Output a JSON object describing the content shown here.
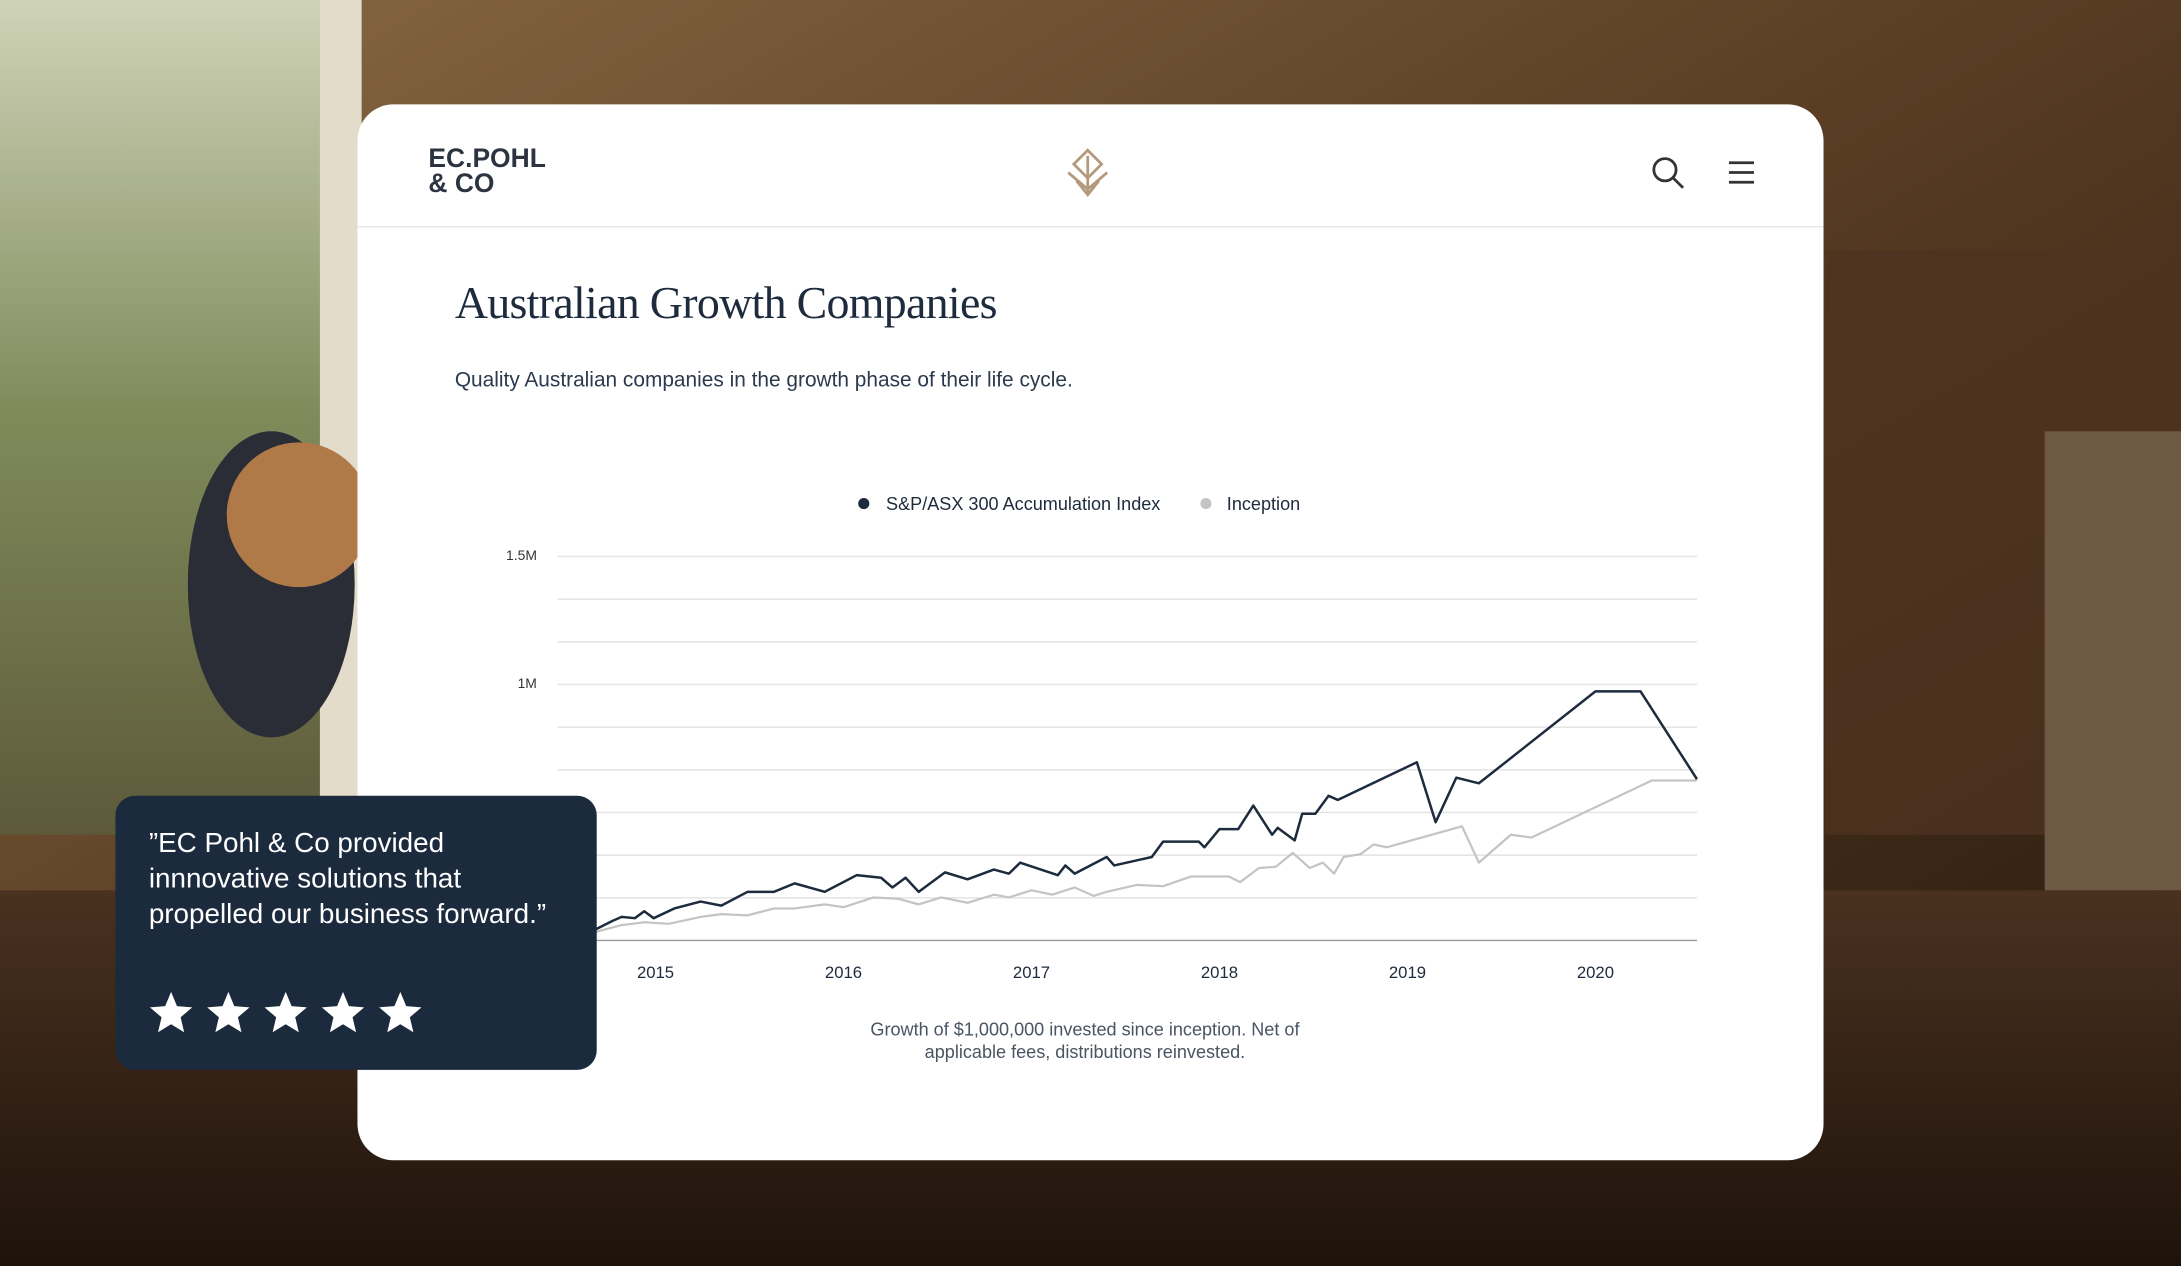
{
  "header": {
    "logo": [
      "EC.POHL",
      "& CO"
    ]
  },
  "content": {
    "title": "Australian Growth Companies",
    "subtitle": "Quality Australian companies in the growth phase of their life cycle."
  },
  "chart_data": {
    "type": "line",
    "legend": "top",
    "grid": true,
    "xlim": [
      2014.48,
      2020.54
    ],
    "xticks": [
      2015,
      2016,
      2017,
      2018,
      2019,
      2020
    ],
    "ylim": [
      0,
      1500000
    ],
    "yticks": [
      {
        "value": 166667,
        "label": null
      },
      {
        "value": 333333,
        "label": null
      },
      {
        "value": 500000,
        "label": null
      },
      {
        "value": 666667,
        "label": null
      },
      {
        "value": 833333,
        "label": null
      },
      {
        "value": 1000000,
        "label": "1M"
      },
      {
        "value": 1166667,
        "label": null
      },
      {
        "value": 1333333,
        "label": null
      },
      {
        "value": 1500000,
        "label": "1.5M"
      }
    ],
    "series": [
      {
        "name": "S&P/ASX 300 Accumulation Index",
        "color": "#1d2b3d",
        "x": [
          2014.68,
          2014.77,
          2014.82,
          2014.89,
          2014.94,
          2014.99,
          2015.1,
          2015.24,
          2015.35,
          2015.49,
          2015.63,
          2015.74,
          2015.9,
          2016.07,
          2016.2,
          2016.26,
          2016.33,
          2016.4,
          2016.54,
          2016.66,
          2016.8,
          2016.88,
          2016.94,
          2017.05,
          2017.14,
          2017.18,
          2017.23,
          2017.4,
          2017.44,
          2017.64,
          2017.7,
          2017.89,
          2017.92,
          2018.0,
          2018.1,
          2018.18,
          2018.28,
          2018.31,
          2018.4,
          2018.44,
          2018.51,
          2018.58,
          2018.63,
          2019.05,
          2019.15,
          2019.26,
          2019.38,
          2020.0,
          2020.24,
          2020.54
        ],
        "values": [
          43000,
          76000,
          92000,
          87000,
          114000,
          87000,
          125000,
          152000,
          136000,
          190000,
          190000,
          223000,
          190000,
          255000,
          245000,
          207000,
          245000,
          190000,
          266000,
          239000,
          277000,
          261000,
          304000,
          277000,
          255000,
          293000,
          261000,
          326000,
          293000,
          326000,
          386000,
          386000,
          364000,
          435000,
          435000,
          527000,
          413000,
          440000,
          391000,
          495000,
          495000,
          565000,
          549000,
          696000,
          462000,
          636000,
          614000,
          973000,
          973000,
          630000
        ]
      },
      {
        "name": "Inception",
        "color": "#c4c4c4",
        "x": [
          2014.68,
          2014.82,
          2014.94,
          2015.07,
          2015.24,
          2015.35,
          2015.49,
          2015.63,
          2015.74,
          2015.9,
          2016.0,
          2016.16,
          2016.29,
          2016.4,
          2016.52,
          2016.66,
          2016.8,
          2016.88,
          2017.0,
          2017.11,
          2017.23,
          2017.33,
          2017.4,
          2017.56,
          2017.7,
          2017.85,
          2018.05,
          2018.11,
          2018.21,
          2018.3,
          2018.39,
          2018.48,
          2018.55,
          2018.61,
          2018.66,
          2018.75,
          2018.82,
          2018.89,
          2019.29,
          2019.38,
          2019.55,
          2019.66,
          2020.3,
          2020.54
        ],
        "values": [
          33000,
          60000,
          71000,
          65000,
          92000,
          103000,
          98000,
          125000,
          125000,
          141000,
          130000,
          168000,
          163000,
          141000,
          168000,
          147000,
          179000,
          168000,
          196000,
          179000,
          207000,
          174000,
          190000,
          217000,
          212000,
          250000,
          250000,
          228000,
          283000,
          288000,
          342000,
          283000,
          304000,
          261000,
          326000,
          337000,
          375000,
          364000,
          446000,
          304000,
          413000,
          402000,
          625000,
          625000
        ]
      }
    ],
    "caption": [
      "Growth of $1,000,000 invested since inception. Net of",
      "applicable fees, distributions reinvested."
    ]
  },
  "testimonial": {
    "quote": [
      "”EC Pohl & Co provided",
      "innnovative solutions that",
      "propelled our business forward.”"
    ],
    "rating": 5
  }
}
